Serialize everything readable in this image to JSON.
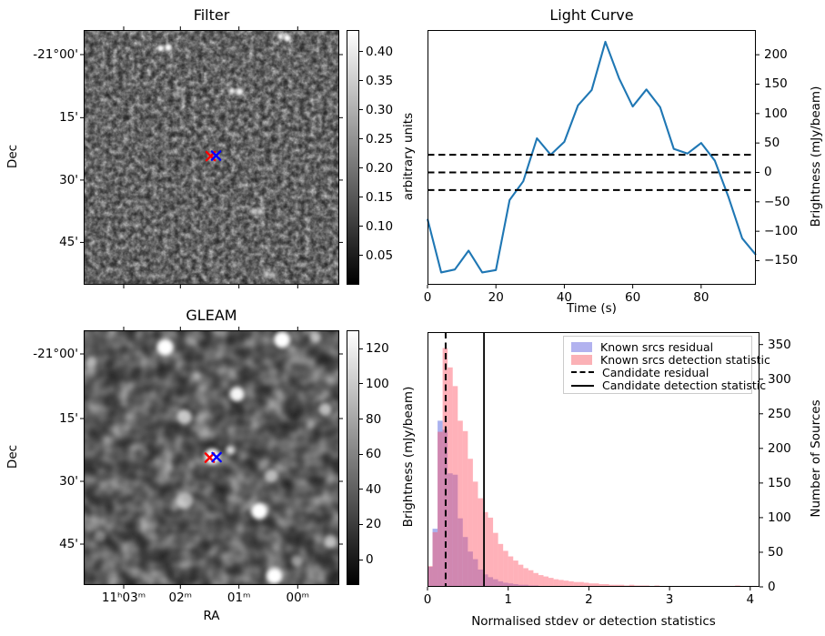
{
  "figure": {
    "background": "#ffffff"
  },
  "chart_data": [
    {
      "id": "filter_map",
      "type": "heatmap",
      "title": "Filter",
      "xlabel": "",
      "ylabel": "Dec",
      "yticks": [
        {
          "pos": 0.0964,
          "label": "-21°00'"
        },
        {
          "pos": 0.344,
          "label": "15'"
        },
        {
          "pos": 0.589,
          "label": "30'"
        },
        {
          "pos": 0.8336,
          "label": "45'"
        }
      ],
      "xtick_positions": [
        0.1566,
        0.3783,
        0.6074,
        0.8374
      ],
      "colorbar": {
        "label": "arbitrary units",
        "min": 0,
        "max": 0.437,
        "ticks": [
          {
            "v": 0.4,
            "label": "0.40"
          },
          {
            "v": 0.35,
            "label": "0.35"
          },
          {
            "v": 0.3,
            "label": "0.30"
          },
          {
            "v": 0.25,
            "label": "0.25"
          },
          {
            "v": 0.2,
            "label": "0.20"
          },
          {
            "v": 0.15,
            "label": "0.15"
          },
          {
            "v": 0.1,
            "label": "0.10"
          },
          {
            "v": 0.05,
            "label": "0.05"
          }
        ]
      },
      "sources": [
        {
          "x": 0.301,
          "y": 0.072,
          "r": 3.5,
          "b": 1.0
        },
        {
          "x": 0.331,
          "y": 0.069,
          "r": 4.0,
          "b": 1.0
        },
        {
          "x": 0.77,
          "y": 0.025,
          "r": 3.5,
          "b": 0.95
        },
        {
          "x": 0.796,
          "y": 0.031,
          "r": 4.0,
          "b": 1.0
        },
        {
          "x": 0.58,
          "y": 0.239,
          "r": 3.5,
          "b": 0.9
        },
        {
          "x": 0.61,
          "y": 0.242,
          "r": 4.0,
          "b": 0.95
        },
        {
          "x": 0.664,
          "y": 0.712,
          "r": 3.5,
          "b": 0.65
        },
        {
          "x": 0.69,
          "y": 0.715,
          "r": 3.5,
          "b": 0.7
        },
        {
          "x": 0.713,
          "y": 0.958,
          "r": 3.5,
          "b": 0.55
        },
        {
          "x": 0.74,
          "y": 0.962,
          "r": 3.5,
          "b": 0.6
        },
        {
          "x": 0.505,
          "y": 0.496,
          "r": 6.0,
          "b": 0.3
        },
        {
          "x": 0.367,
          "y": 0.25,
          "r": 4.0,
          "b": 0.3
        }
      ],
      "markers": [
        {
          "shape": "x",
          "color": "#ff0000",
          "x": 0.497,
          "y": 0.495
        },
        {
          "shape": "x",
          "color": "#0000ff",
          "x": 0.518,
          "y": 0.493
        }
      ]
    },
    {
      "id": "light_curve",
      "type": "line",
      "title": "Light Curve",
      "xlabel": "Time (s)",
      "ylabel": "Brightness (mJy/beam)",
      "xlim": [
        0,
        96
      ],
      "ylim": [
        -191,
        242
      ],
      "xticks": [
        0,
        20,
        40,
        60,
        80
      ],
      "yticks": [
        200,
        150,
        100,
        50,
        0,
        -50,
        -100,
        -150
      ],
      "line_color": "#1f77b4",
      "x": [
        0,
        4,
        8,
        12,
        16,
        20,
        24,
        28,
        32,
        36,
        40,
        44,
        48,
        52,
        56,
        60,
        64,
        68,
        72,
        76,
        80,
        84,
        88,
        92,
        96
      ],
      "y": [
        -79,
        -170,
        -165,
        -133,
        -170,
        -166,
        -47,
        -15,
        58,
        30,
        52,
        114,
        140,
        222,
        160,
        112,
        141,
        111,
        40,
        32,
        50,
        20,
        -42,
        -112,
        -140
      ],
      "hlines": {
        "values": [
          30,
          0,
          -30
        ],
        "style": "dashed",
        "color": "#000000"
      }
    },
    {
      "id": "gleam_map",
      "type": "heatmap",
      "title": "GLEAM",
      "xlabel": "RA",
      "ylabel": "Dec",
      "yticks": [
        {
          "pos": 0.0929,
          "label": "-21°00'"
        },
        {
          "pos": 0.3464,
          "label": "15'"
        },
        {
          "pos": 0.5929,
          "label": "30'"
        },
        {
          "pos": 0.8393,
          "label": "45'"
        }
      ],
      "xticks": [
        {
          "pos": 0.1566,
          "label": "11ʰ03ᵐ"
        },
        {
          "pos": 0.3783,
          "label": "02ᵐ"
        },
        {
          "pos": 0.6074,
          "label": "01ᵐ"
        },
        {
          "pos": 0.8374,
          "label": "00ᵐ"
        }
      ],
      "colorbar": {
        "label": "Brightness (mJy/beam)",
        "min": -14.5,
        "max": 130.5,
        "ticks": [
          {
            "v": 120,
            "label": "120"
          },
          {
            "v": 100,
            "label": "100"
          },
          {
            "v": 80,
            "label": "80"
          },
          {
            "v": 60,
            "label": "60"
          },
          {
            "v": 40,
            "label": "40"
          },
          {
            "v": 20,
            "label": "20"
          },
          {
            "v": 0,
            "label": "0"
          }
        ]
      },
      "sources": [
        {
          "x": 0.319,
          "y": 0.067,
          "r": 9.0,
          "b": 1.0
        },
        {
          "x": 0.776,
          "y": 0.037,
          "r": 9.0,
          "b": 1.0
        },
        {
          "x": 0.6,
          "y": 0.251,
          "r": 8.0,
          "b": 0.95
        },
        {
          "x": 0.944,
          "y": 0.311,
          "r": 7.0,
          "b": 0.65
        },
        {
          "x": 0.394,
          "y": 0.34,
          "r": 8.0,
          "b": 0.7
        },
        {
          "x": 0.503,
          "y": 0.495,
          "r": 8.5,
          "b": 1.0
        },
        {
          "x": 0.574,
          "y": 0.471,
          "r": 5.0,
          "b": 0.8
        },
        {
          "x": 0.734,
          "y": 0.572,
          "r": 7.0,
          "b": 0.6
        },
        {
          "x": 0.396,
          "y": 0.668,
          "r": 9.0,
          "b": 0.55
        },
        {
          "x": 0.687,
          "y": 0.71,
          "r": 9.0,
          "b": 1.0
        },
        {
          "x": 0.966,
          "y": 0.829,
          "r": 7.0,
          "b": 0.55
        },
        {
          "x": 0.746,
          "y": 0.965,
          "r": 9.0,
          "b": 1.0
        },
        {
          "x": 0.028,
          "y": 0.126,
          "r": 6.0,
          "b": 0.4
        },
        {
          "x": 0.064,
          "y": 0.81,
          "r": 6.0,
          "b": 0.35
        },
        {
          "x": 0.906,
          "y": 0.025,
          "r": 6.0,
          "b": 0.5
        },
        {
          "x": 0.835,
          "y": 0.906,
          "r": 6.0,
          "b": 0.45
        }
      ],
      "markers": [
        {
          "shape": "x",
          "color": "#ff0000",
          "x": 0.493,
          "y": 0.5
        },
        {
          "shape": "x",
          "color": "#0000ff",
          "x": 0.52,
          "y": 0.498
        }
      ]
    },
    {
      "id": "histogram",
      "type": "bar",
      "title": "",
      "xlabel": "Normalised stdev or detection statistics",
      "ylabel": "Number of Sources",
      "xlim": [
        0,
        4.115
      ],
      "ylim": [
        0,
        368
      ],
      "xticks": [
        0,
        1,
        2,
        3,
        4
      ],
      "yticks": [
        0,
        50,
        100,
        150,
        200,
        250,
        300,
        350
      ],
      "bin_start": 0,
      "bin_width": 0.0625,
      "series": [
        {
          "name": "Known srcs residual",
          "fill": "rgba(66,84,217,0.45)",
          "values": [
            29,
            84,
            240,
            227,
            164,
            162,
            99,
            72,
            51,
            40,
            25,
            18,
            14,
            11,
            8,
            6,
            5,
            4,
            3,
            3,
            2,
            2,
            1,
            1,
            1,
            1,
            0,
            0,
            0,
            0,
            0,
            0,
            0,
            0,
            0,
            0,
            0,
            0,
            0,
            0,
            0,
            0,
            0,
            0,
            0,
            0,
            0,
            0,
            0,
            0,
            0,
            0,
            0,
            0,
            0,
            0,
            0,
            0,
            0,
            0,
            0,
            0,
            0,
            0
          ]
        },
        {
          "name": "Known srcs detection statistic",
          "fill": "rgba(255,82,100,0.45)",
          "values": [
            30,
            79,
            224,
            345,
            317,
            290,
            240,
            225,
            185,
            152,
            128,
            108,
            100,
            78,
            62,
            52,
            44,
            38,
            32,
            27,
            24,
            20,
            17,
            15,
            13,
            11,
            10,
            9,
            8,
            7,
            7,
            6,
            5,
            5,
            4,
            4,
            3,
            3,
            3,
            2,
            3,
            2,
            2,
            2,
            1,
            2,
            1,
            1,
            1,
            1,
            1,
            1,
            0,
            1,
            0,
            0,
            1,
            0,
            0,
            0,
            0,
            2,
            0,
            0
          ]
        }
      ],
      "vlines": [
        {
          "name": "Candidate residual",
          "x": 0.225,
          "style": "dashed"
        },
        {
          "name": "Candidate detection statistic",
          "x": 0.7,
          "style": "solid"
        }
      ],
      "legend": {
        "entries": [
          {
            "label": "Known srcs residual",
            "swatch": "patch",
            "color": "#b2b2ef"
          },
          {
            "label": "Known srcs detection statistic",
            "swatch": "patch",
            "color": "#fbb1b6"
          },
          {
            "label": "Candidate residual",
            "swatch": "dashed"
          },
          {
            "label": "Candidate detection statistic",
            "swatch": "solid"
          }
        ]
      }
    }
  ]
}
